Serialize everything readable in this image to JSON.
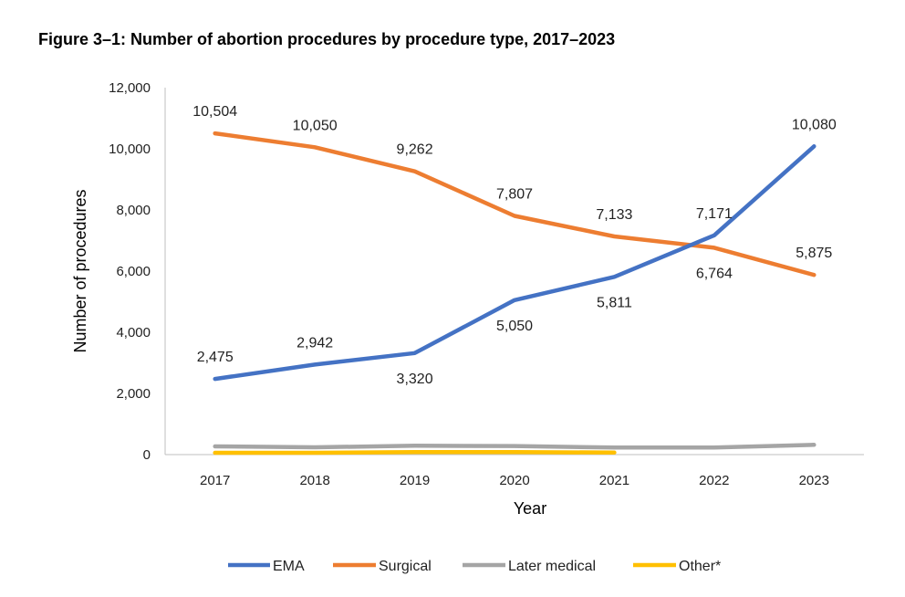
{
  "chart_data": {
    "type": "line",
    "title": "Figure 3–1: Number of abortion procedures by procedure type, 2017–2023",
    "xlabel": "Year",
    "ylabel": "Number of procedures",
    "x": [
      "2017",
      "2018",
      "2019",
      "2020",
      "2021",
      "2022",
      "2023"
    ],
    "ylim": [
      0,
      12000
    ],
    "yticks": [
      "0",
      "2,000",
      "4,000",
      "6,000",
      "8,000",
      "10,000",
      "12,000"
    ],
    "grid": false,
    "legend_position": "bottom",
    "series": [
      {
        "name": "EMA",
        "color": "#4472c4",
        "values": [
          2475,
          2942,
          3320,
          5050,
          5811,
          7171,
          10080
        ],
        "labels": [
          "2,475",
          "2,942",
          "3,320",
          "5,050",
          "5,811",
          "7,171",
          "10,080"
        ]
      },
      {
        "name": "Surgical",
        "color": "#ed7d31",
        "values": [
          10504,
          10050,
          9262,
          7807,
          7133,
          6764,
          5875
        ],
        "labels": [
          "10,504",
          "10,050",
          "9,262",
          "7,807",
          "7,133",
          "6,764",
          "5,875"
        ]
      },
      {
        "name": "Later medical",
        "color": "#a5a5a5",
        "values": [
          270,
          240,
          290,
          280,
          230,
          230,
          320
        ],
        "labels": []
      },
      {
        "name": "Other*",
        "color": "#ffc000",
        "values": [
          60,
          60,
          80,
          80,
          70,
          null,
          null
        ],
        "labels": []
      }
    ]
  }
}
